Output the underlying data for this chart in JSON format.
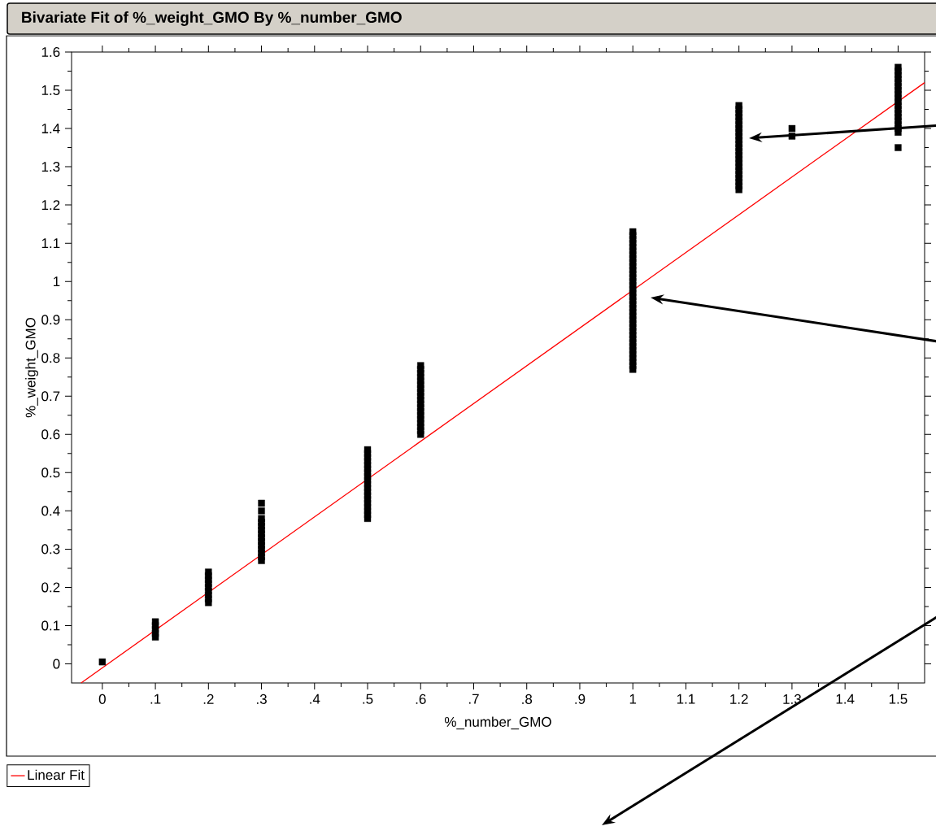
{
  "chart_data": {
    "type": "scatter",
    "title": "Bivariate Fit of %_weight_GMO By %_number_GMO",
    "xlabel": "%_number_GMO",
    "ylabel": "%_weight_GMO",
    "xlim": [
      -0.058,
      1.55
    ],
    "ylim": [
      -0.05,
      1.6
    ],
    "xticks": [
      0,
      {
        "value": 0.1,
        "label": ".1"
      },
      {
        "value": 0.2,
        "label": ".2"
      },
      {
        "value": 0.3,
        "label": ".3"
      },
      {
        "value": 0.4,
        "label": ".4"
      },
      {
        "value": 0.5,
        "label": ".5"
      },
      {
        "value": 0.6,
        "label": ".6"
      },
      {
        "value": 0.7,
        "label": ".7"
      },
      {
        "value": 0.8,
        "label": ".8"
      },
      {
        "value": 0.9,
        "label": ".9"
      },
      1,
      1.1,
      1.2,
      1.3,
      1.4,
      1.5
    ],
    "yticks": [
      0,
      0.1,
      0.2,
      0.3,
      0.4,
      0.5,
      0.6,
      0.7,
      0.8,
      0.9,
      1,
      1.1,
      1.2,
      1.3,
      1.4,
      1.5,
      1.6
    ],
    "legend": "bottom left",
    "grid": false,
    "series": [
      {
        "marker": "square",
        "color": "#000000",
        "x": [
          0,
          0.1,
          0.1,
          0.1,
          0.1,
          0.1,
          0.2,
          0.2,
          0.2,
          0.2,
          0.2,
          0.2,
          0.2,
          0.2,
          0.2,
          0.3,
          0.3,
          0.3,
          0.3,
          0.3,
          0.3,
          0.3,
          0.3,
          0.3,
          0.3,
          0.3,
          0.3,
          0.3,
          0.3,
          0.5,
          0.5,
          0.5,
          0.5,
          0.5,
          0.5,
          0.5,
          0.5,
          0.5,
          0.5,
          0.5,
          0.5,
          0.5,
          0.5,
          0.5,
          0.5,
          0.5,
          0.5,
          0.5,
          0.6,
          0.6,
          0.6,
          0.6,
          0.6,
          0.6,
          0.6,
          0.6,
          0.6,
          0.6,
          0.6,
          0.6,
          0.6,
          0.6,
          0.6,
          0.6,
          0.6,
          0.6,
          0.6,
          1,
          1,
          1,
          1,
          1,
          1,
          1,
          1,
          1,
          1,
          1,
          1,
          1,
          1,
          1,
          1,
          1,
          1,
          1,
          1,
          1,
          1,
          1,
          1,
          1,
          1,
          1,
          1,
          1,
          1,
          1,
          1,
          1,
          1,
          1,
          1,
          1,
          1.2,
          1.2,
          1.2,
          1.2,
          1.2,
          1.2,
          1.2,
          1.2,
          1.2,
          1.2,
          1.2,
          1.2,
          1.2,
          1.2,
          1.2,
          1.2,
          1.2,
          1.2,
          1.2,
          1.2,
          1.2,
          1.2,
          1.2,
          1.3,
          1.3,
          1.5,
          1.5,
          1.5,
          1.5,
          1.5,
          1.5,
          1.5,
          1.5,
          1.5,
          1.5,
          1.5,
          1.5,
          1.5,
          1.5,
          1.5,
          1.5,
          1.5,
          1.5,
          1.5
        ],
        "values": [
          0.005,
          0.07,
          0.08,
          0.09,
          0.1,
          0.11,
          0.16,
          0.17,
          0.18,
          0.19,
          0.2,
          0.21,
          0.22,
          0.23,
          0.24,
          0.27,
          0.28,
          0.29,
          0.3,
          0.31,
          0.32,
          0.33,
          0.34,
          0.35,
          0.36,
          0.37,
          0.38,
          0.4,
          0.42,
          0.38,
          0.39,
          0.4,
          0.41,
          0.42,
          0.43,
          0.44,
          0.45,
          0.46,
          0.47,
          0.48,
          0.49,
          0.5,
          0.51,
          0.52,
          0.53,
          0.54,
          0.55,
          0.56,
          0.6,
          0.61,
          0.62,
          0.63,
          0.64,
          0.65,
          0.66,
          0.67,
          0.68,
          0.69,
          0.7,
          0.71,
          0.72,
          0.73,
          0.74,
          0.75,
          0.76,
          0.77,
          0.78,
          0.77,
          0.78,
          0.79,
          0.8,
          0.81,
          0.82,
          0.83,
          0.84,
          0.85,
          0.86,
          0.87,
          0.88,
          0.89,
          0.9,
          0.91,
          0.92,
          0.93,
          0.94,
          0.95,
          0.96,
          0.97,
          0.98,
          0.99,
          1,
          1.01,
          1.02,
          1.03,
          1.04,
          1.05,
          1.06,
          1.07,
          1.08,
          1.09,
          1.1,
          1.11,
          1.12,
          1.13,
          1.24,
          1.25,
          1.26,
          1.27,
          1.28,
          1.29,
          1.3,
          1.31,
          1.32,
          1.33,
          1.34,
          1.35,
          1.36,
          1.37,
          1.38,
          1.39,
          1.4,
          1.41,
          1.42,
          1.43,
          1.44,
          1.45,
          1.46,
          1.38,
          1.4,
          1.35,
          1.39,
          1.4,
          1.41,
          1.42,
          1.43,
          1.44,
          1.45,
          1.46,
          1.47,
          1.48,
          1.49,
          1.5,
          1.51,
          1.52,
          1.53,
          1.54,
          1.55,
          1.56
        ]
      },
      {
        "type": "line",
        "marker": "none",
        "name": "Linear Fit",
        "color": "#ff0000",
        "x": [
          -0.04,
          1.55
        ],
        "values": [
          -0.05,
          1.52
        ]
      }
    ]
  }
}
